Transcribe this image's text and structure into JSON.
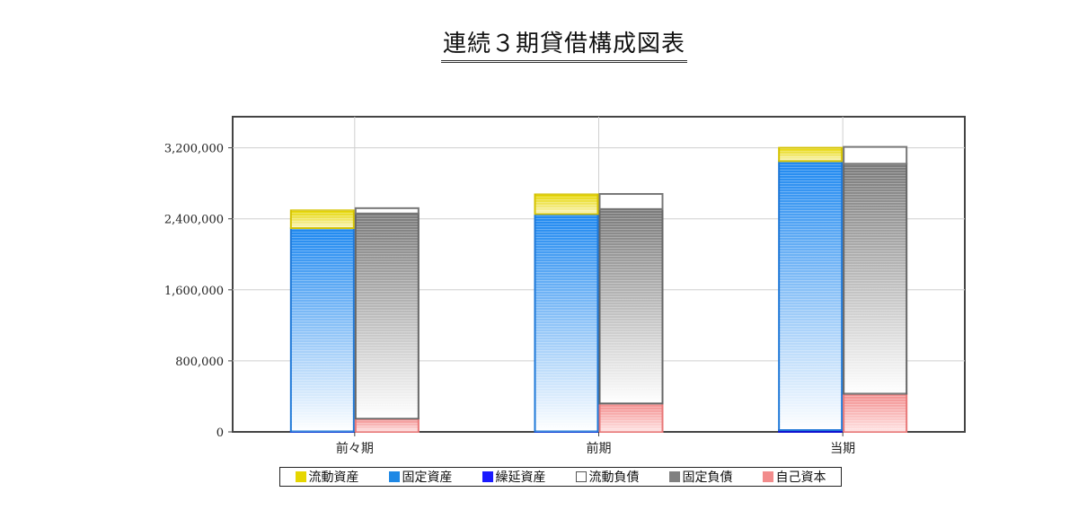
{
  "chart_data": {
    "type": "bar",
    "title": "連続３期貸借構成図表",
    "categories": [
      "前々期",
      "前期",
      "当期"
    ],
    "yticks": [
      "0",
      "800,000",
      "1,600,000",
      "2,400,000",
      "3,200,000"
    ],
    "ylim": [
      0,
      3550000
    ],
    "grid": true,
    "legend_position": "bottom",
    "stacks": {
      "assets": [
        "流動資産",
        "固定資産",
        "繰延資産"
      ],
      "liabilities_equity": [
        "流動負債",
        "固定負債",
        "自己資本"
      ]
    },
    "series": [
      {
        "name": "流動資産",
        "stack": "assets",
        "color": "#e6d600",
        "values": [
          200000,
          220000,
          150000
        ]
      },
      {
        "name": "固定資産",
        "stack": "assets",
        "color": "#1e88e5",
        "values": [
          2290000,
          2450000,
          3030000
        ]
      },
      {
        "name": "繰延資産",
        "stack": "assets",
        "color": "#1a1aff",
        "values": [
          5000,
          5000,
          20000
        ]
      },
      {
        "name": "流動負債",
        "stack": "liabilities_equity",
        "color": "#ffffff",
        "values": [
          60000,
          170000,
          190000
        ]
      },
      {
        "name": "固定負債",
        "stack": "liabilities_equity",
        "color": "#808080",
        "values": [
          2310000,
          2190000,
          2590000
        ]
      },
      {
        "name": "自己資本",
        "stack": "liabilities_equity",
        "color": "#f28c8c",
        "values": [
          150000,
          320000,
          430000
        ]
      }
    ]
  }
}
